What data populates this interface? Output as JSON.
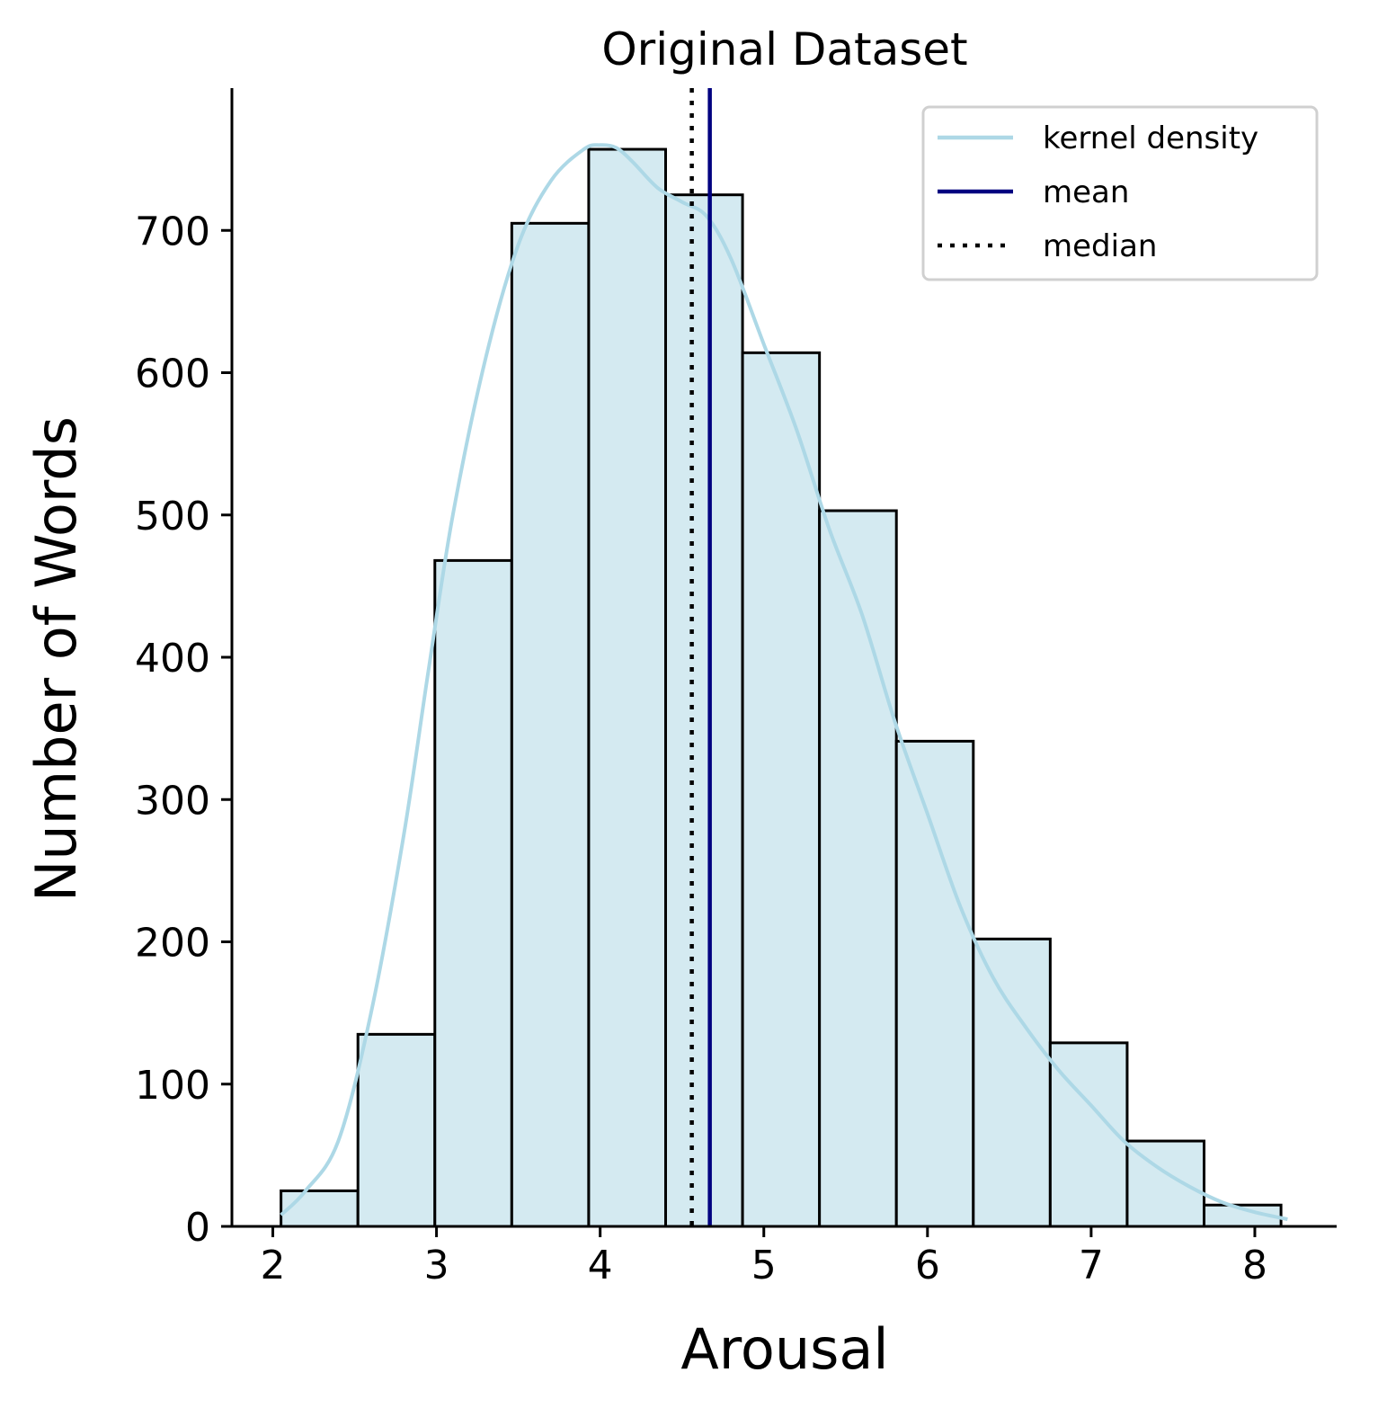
{
  "chart_data": {
    "type": "bar",
    "title": "Original Dataset",
    "xlabel": "Arousal",
    "ylabel": "Number of Words",
    "xlim": [
      1.75,
      8.5
    ],
    "ylim": [
      0,
      800
    ],
    "xticks": [
      2,
      3,
      4,
      5,
      6,
      7,
      8
    ],
    "yticks": [
      0,
      100,
      200,
      300,
      400,
      500,
      600,
      700
    ],
    "bin_edges": [
      2.05,
      2.52,
      2.99,
      3.46,
      3.93,
      4.4,
      4.87,
      5.34,
      5.81,
      6.28,
      6.75,
      7.22,
      7.69,
      8.16
    ],
    "values": [
      25,
      135,
      468,
      705,
      757,
      725,
      614,
      503,
      341,
      202,
      129,
      60,
      15
    ],
    "mean": 4.67,
    "median": 4.56,
    "kde": {
      "x": [
        2.05,
        2.2,
        2.4,
        2.6,
        2.8,
        2.95,
        3.1,
        3.3,
        3.5,
        3.7,
        3.9,
        4.0,
        4.1,
        4.2,
        4.35,
        4.5,
        4.65,
        4.8,
        5.0,
        5.2,
        5.4,
        5.6,
        5.8,
        6.0,
        6.2,
        6.4,
        6.6,
        6.8,
        7.0,
        7.2,
        7.4,
        7.6,
        7.8,
        8.0,
        8.2
      ],
      "y": [
        8,
        25,
        60,
        150,
        275,
        390,
        500,
        610,
        690,
        735,
        757,
        760,
        758,
        748,
        730,
        720,
        710,
        680,
        620,
        560,
        490,
        430,
        355,
        290,
        225,
        175,
        140,
        110,
        85,
        60,
        42,
        28,
        17,
        10,
        5
      ]
    },
    "legend": {
      "position": "upper right",
      "entries": [
        {
          "label": "kernel density",
          "color": "#add8e6",
          "style": "solid"
        },
        {
          "label": "mean",
          "color": "#000080",
          "style": "solid"
        },
        {
          "label": "median",
          "color": "#000000",
          "style": "dotted"
        }
      ]
    },
    "colors": {
      "bar_fill": "#d4eaf1",
      "bar_edge": "#000000",
      "kde_line": "#add8e6",
      "mean_line": "#000080",
      "median_line": "#000000"
    },
    "grid": false
  }
}
